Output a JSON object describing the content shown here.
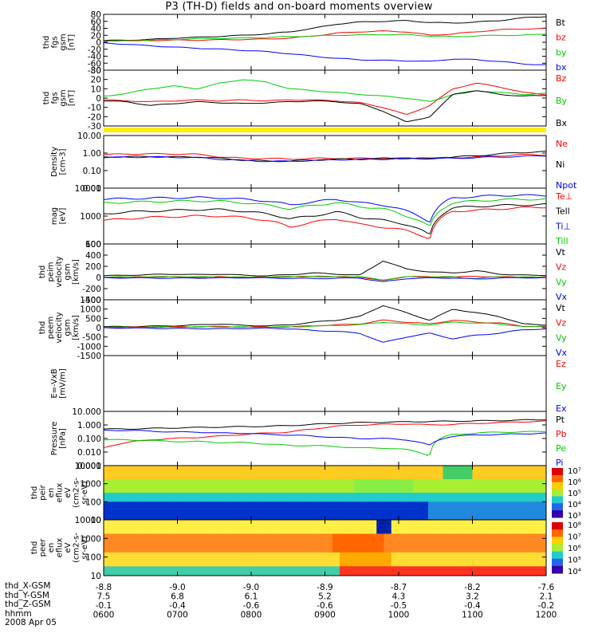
{
  "title": "P3 (TH-D) fields and on-board moments overview",
  "chart_data": [
    {
      "type": "line",
      "key": "fgs",
      "ylabel": [
        "thd",
        "fgs",
        "gsm",
        "[nT]"
      ],
      "ticks": [
        "80",
        "60",
        "40",
        "20",
        "0",
        "-20",
        "-40",
        "-60",
        "-80"
      ],
      "series": [
        {
          "name": "Bt",
          "color": "#000000",
          "values": [
            5,
            6,
            8,
            12,
            14,
            17,
            20,
            24,
            30,
            40,
            52,
            58,
            60,
            62,
            57,
            55,
            58,
            62,
            70,
            74
          ]
        },
        {
          "name": "bz",
          "color": "#ff0000",
          "values": [
            4,
            5,
            5,
            6,
            6,
            7,
            8,
            9,
            12,
            18,
            26,
            30,
            32,
            30,
            20,
            24,
            30,
            36,
            38,
            40
          ]
        },
        {
          "name": "by",
          "color": "#00cc00",
          "values": [
            3,
            4,
            6,
            8,
            10,
            11,
            12,
            14,
            16,
            18,
            20,
            21,
            22,
            22,
            18,
            16,
            18,
            20,
            20,
            24
          ]
        },
        {
          "name": "bx",
          "color": "#0000ff",
          "values": [
            -2,
            -6,
            -10,
            -14,
            -17,
            -20,
            -23,
            -27,
            -33,
            -40,
            -46,
            -50,
            -52,
            -53,
            -55,
            -48,
            -50,
            -55,
            -62,
            -65
          ]
        }
      ]
    },
    {
      "type": "line",
      "key": "fgs2",
      "ylabel": [
        "thd",
        "fgs",
        "gsm",
        "[nT]"
      ],
      "ticks": [
        "30",
        "20",
        "10",
        "0",
        "-10",
        "-20",
        "-30"
      ],
      "series": [
        {
          "name": "Bz",
          "color": "#ff0000",
          "values": [
            -2,
            -3,
            -4,
            -3,
            -2,
            -3,
            -2,
            -3,
            -2,
            -2,
            -3,
            -5,
            -10,
            -18,
            -8,
            10,
            16,
            12,
            6,
            4
          ]
        },
        {
          "name": "By",
          "color": "#00cc00",
          "values": [
            2,
            5,
            10,
            13,
            10,
            16,
            20,
            17,
            10,
            8,
            6,
            4,
            2,
            0,
            -4,
            4,
            8,
            6,
            4,
            5
          ]
        },
        {
          "name": "Bx",
          "color": "#000000",
          "values": [
            -3,
            -4,
            -8,
            -6,
            -4,
            -5,
            -6,
            -5,
            -4,
            -3,
            -4,
            -6,
            -14,
            -26,
            -20,
            4,
            8,
            4,
            2,
            3
          ]
        }
      ]
    },
    {
      "type": "line",
      "key": "density",
      "ylabel": [
        "Density",
        "[cm-3]"
      ],
      "ticks": [
        "10.00",
        "1.00",
        "0.10",
        "0.01"
      ],
      "series": [
        {
          "name": "Ne",
          "color": "#ff0000",
          "values": [
            0.8,
            0.9,
            0.9,
            0.9,
            0.85,
            0.6,
            0.5,
            0.5,
            0.45,
            0.5,
            0.5,
            0.5,
            0.5,
            0.5,
            0.5,
            0.55,
            0.6,
            0.7,
            0.8,
            0.8
          ]
        },
        {
          "name": "Ni",
          "color": "#000000",
          "values": [
            0.6,
            0.62,
            0.63,
            0.6,
            0.6,
            0.5,
            0.4,
            0.35,
            0.35,
            0.4,
            0.45,
            0.45,
            0.5,
            0.5,
            0.5,
            0.6,
            0.7,
            0.9,
            1.1,
            1.2
          ]
        },
        {
          "name": "Npot",
          "color": "#0000ff",
          "values": [
            0.55,
            0.58,
            0.6,
            0.58,
            0.55,
            0.45,
            0.38,
            0.34,
            0.34,
            0.38,
            0.42,
            0.43,
            0.45,
            0.5,
            0.48,
            0.5,
            0.55,
            0.6,
            0.65,
            0.7
          ]
        }
      ]
    },
    {
      "type": "line",
      "key": "temp",
      "ylabel": [
        "mag",
        "[eV]"
      ],
      "ticks": [
        "10000",
        "1000",
        "100"
      ],
      "series": [
        {
          "name": "Te⊥",
          "color": "#ff0000",
          "values": [
            700,
            800,
            900,
            950,
            1000,
            1000,
            900,
            700,
            400,
            600,
            800,
            500,
            400,
            300,
            150,
            1500,
            1600,
            1800,
            2000,
            2100
          ]
        },
        {
          "name": "Tell",
          "color": "#000000",
          "values": [
            1200,
            1400,
            1500,
            1600,
            1700,
            1700,
            1500,
            1200,
            800,
            1000,
            1400,
            900,
            700,
            500,
            200,
            2000,
            2200,
            2400,
            2500,
            2600
          ]
        },
        {
          "name": "Ti⊥",
          "color": "#0000ff",
          "values": [
            4000,
            4200,
            4400,
            4500,
            4600,
            4500,
            4000,
            3500,
            2500,
            3200,
            4000,
            3000,
            2500,
            1500,
            600,
            4500,
            5000,
            5500,
            5500,
            5500
          ]
        },
        {
          "name": "Till",
          "color": "#00cc00",
          "values": [
            3000,
            3100,
            3300,
            3400,
            3500,
            3400,
            3000,
            2500,
            1800,
            2400,
            3000,
            2200,
            1800,
            1000,
            400,
            3000,
            3500,
            3800,
            4000,
            4000
          ]
        }
      ]
    },
    {
      "type": "line",
      "key": "peim",
      "ylabel": [
        "thd",
        "peim",
        "velocity",
        "gsm",
        "[km/s]"
      ],
      "ticks": [
        "600",
        "400",
        "200",
        "0",
        "-200",
        "-400"
      ],
      "series": [
        {
          "name": "Vt",
          "color": "#000000",
          "values": [
            30,
            40,
            50,
            60,
            50,
            60,
            40,
            30,
            50,
            80,
            60,
            40,
            300,
            150,
            100,
            80,
            120,
            60,
            40,
            40
          ]
        },
        {
          "name": "Vz",
          "color": "#ff0000",
          "values": [
            5,
            5,
            10,
            10,
            5,
            10,
            5,
            5,
            10,
            20,
            10,
            10,
            -60,
            20,
            10,
            10,
            20,
            10,
            5,
            5
          ]
        },
        {
          "name": "Vy",
          "color": "#00cc00",
          "values": [
            5,
            10,
            10,
            15,
            10,
            10,
            5,
            10,
            15,
            20,
            15,
            10,
            -40,
            10,
            10,
            10,
            -20,
            10,
            5,
            5
          ]
        },
        {
          "name": "Vx",
          "color": "#0000ff",
          "values": [
            -5,
            -10,
            -10,
            -15,
            -10,
            -10,
            -5,
            -10,
            -15,
            -20,
            -15,
            -10,
            -80,
            -20,
            -10,
            -10,
            -30,
            -10,
            -5,
            -5
          ]
        }
      ]
    },
    {
      "type": "line",
      "key": "peem",
      "ylabel": [
        "thd",
        "peem",
        "velocity",
        "gsm",
        "[km/s]"
      ],
      "ticks": [
        "1500",
        "1000",
        "500",
        "0",
        "-500",
        "-1000",
        "-1500"
      ],
      "series": [
        {
          "name": "Vt",
          "color": "#000000",
          "values": [
            50,
            60,
            80,
            100,
            150,
            200,
            120,
            100,
            150,
            300,
            400,
            600,
            1200,
            800,
            400,
            1000,
            800,
            600,
            200,
            150
          ]
        },
        {
          "name": "Vz",
          "color": "#ff0000",
          "values": [
            10,
            20,
            30,
            40,
            50,
            60,
            40,
            30,
            40,
            100,
            150,
            200,
            400,
            300,
            200,
            400,
            300,
            250,
            80,
            60
          ]
        },
        {
          "name": "Vy",
          "color": "#00cc00",
          "values": [
            10,
            20,
            30,
            40,
            40,
            50,
            30,
            30,
            40,
            80,
            120,
            150,
            300,
            200,
            150,
            300,
            250,
            200,
            60,
            50
          ]
        },
        {
          "name": "Vx",
          "color": "#0000ff",
          "values": [
            -10,
            -20,
            -30,
            -40,
            -50,
            -60,
            -40,
            -30,
            -60,
            -150,
            -200,
            -300,
            -800,
            -500,
            -300,
            -600,
            -400,
            -300,
            -100,
            -80
          ]
        }
      ]
    },
    {
      "type": "line",
      "key": "efield",
      "ylabel": [
        "E=-VxB",
        "[mV/m]"
      ],
      "ticks": [],
      "series": [
        {
          "name": "Ez",
          "color": "#ff0000",
          "values": []
        },
        {
          "name": "Ey",
          "color": "#00cc00",
          "values": []
        },
        {
          "name": "Ex",
          "color": "#0000ff",
          "values": []
        }
      ]
    },
    {
      "type": "line",
      "key": "pressure",
      "ylabel": [
        "Pressure",
        "[nPa]"
      ],
      "ticks": [
        "10.000",
        "1.000",
        "0.100",
        "0.010",
        "0.001"
      ],
      "series": [
        {
          "name": "Pt",
          "color": "#000000",
          "values": [
            0.5,
            0.5,
            0.55,
            0.6,
            0.65,
            0.7,
            0.75,
            0.8,
            0.9,
            1.1,
            1.3,
            1.5,
            1.6,
            1.7,
            1.8,
            1.9,
            2.0,
            2.1,
            2.3,
            2.5
          ]
        },
        {
          "name": "Pb",
          "color": "#ff0000",
          "values": [
            0.02,
            0.05,
            0.08,
            0.1,
            0.12,
            0.15,
            0.2,
            0.25,
            0.3,
            0.5,
            0.8,
            1.0,
            1.1,
            1.2,
            1.0,
            1.1,
            1.3,
            1.5,
            1.7,
            1.9
          ]
        },
        {
          "name": "Pe",
          "color": "#00cc00",
          "values": [
            0.08,
            0.08,
            0.07,
            0.06,
            0.06,
            0.05,
            0.05,
            0.04,
            0.03,
            0.03,
            0.025,
            0.02,
            0.02,
            0.015,
            0.005,
            0.2,
            0.25,
            0.3,
            0.3,
            0.35
          ]
        },
        {
          "name": "Pi",
          "color": "#0000ff",
          "values": [
            0.4,
            0.4,
            0.35,
            0.3,
            0.3,
            0.25,
            0.25,
            0.2,
            0.18,
            0.15,
            0.12,
            0.1,
            0.1,
            0.08,
            0.03,
            0.15,
            0.18,
            0.2,
            0.22,
            0.25
          ]
        }
      ]
    },
    {
      "type": "heatmap",
      "key": "peir",
      "ylabel": [
        "thd",
        "peir",
        "en",
        "eflux",
        "eV",
        "(cm2-s-",
        "sr-eV)"
      ],
      "ticks": [
        "10000",
        "1000",
        "100",
        "10"
      ],
      "colorbar_ticks": [
        "10⁷",
        "10⁶",
        "10⁵",
        "10⁴",
        "10³"
      ]
    },
    {
      "type": "heatmap",
      "key": "peer",
      "ylabel": [
        "thd",
        "peer",
        "en",
        "eflux",
        "eV",
        "(cm2-s-",
        "sr-eV)"
      ],
      "ticks": [
        "10000",
        "1000",
        "100",
        "10"
      ],
      "colorbar_ticks": [
        "10⁸",
        "10⁷",
        "10⁶",
        "10⁵",
        "10⁴"
      ]
    }
  ],
  "xaxis": {
    "rows": [
      {
        "label": "thd_X-GSM",
        "values": [
          "-8.8",
          "-9.0",
          "-9.0",
          "-8.9",
          "-8.7",
          "-8.2",
          "-7.6"
        ]
      },
      {
        "label": "thd_Y-GSM",
        "values": [
          "7.5",
          "6.8",
          "6.1",
          "5.2",
          "4.3",
          "3.2",
          "2.1"
        ]
      },
      {
        "label": "thd_Z-GSM",
        "values": [
          "-0.1",
          "-0.4",
          "-0.6",
          "-0.6",
          "-0.5",
          "-0.4",
          "-0.2"
        ]
      },
      {
        "label": "hhmm",
        "values": [
          "0600",
          "0700",
          "0800",
          "0900",
          "1000",
          "1100",
          "1200"
        ]
      }
    ],
    "date": "2008 Apr 05"
  }
}
